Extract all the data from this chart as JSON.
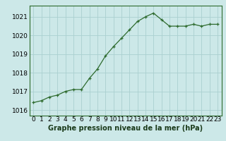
{
  "x": [
    0,
    1,
    2,
    3,
    4,
    5,
    6,
    7,
    8,
    9,
    10,
    11,
    12,
    13,
    14,
    15,
    16,
    17,
    18,
    19,
    20,
    21,
    22,
    23
  ],
  "y": [
    1016.4,
    1016.5,
    1016.7,
    1016.8,
    1017.0,
    1017.1,
    1017.1,
    1017.7,
    1018.2,
    1018.9,
    1019.4,
    1019.85,
    1020.3,
    1020.75,
    1021.0,
    1021.2,
    1020.85,
    1020.5,
    1020.5,
    1020.5,
    1020.6,
    1020.5,
    1020.6,
    1020.6
  ],
  "yticks": [
    1016,
    1017,
    1018,
    1019,
    1020,
    1021
  ],
  "xticks": [
    0,
    1,
    2,
    3,
    4,
    5,
    6,
    7,
    8,
    9,
    10,
    11,
    12,
    13,
    14,
    15,
    16,
    17,
    18,
    19,
    20,
    21,
    22,
    23
  ],
  "xlabel": "Graphe pression niveau de la mer (hPa)",
  "line_color": "#2d6a2d",
  "marker_color": "#2d6a2d",
  "bg_color": "#cce8e8",
  "grid_color": "#aad0d0",
  "ylim": [
    1015.7,
    1021.6
  ],
  "xlim": [
    -0.5,
    23.5
  ],
  "axis_fontsize": 6.5,
  "label_fontsize": 7.0
}
